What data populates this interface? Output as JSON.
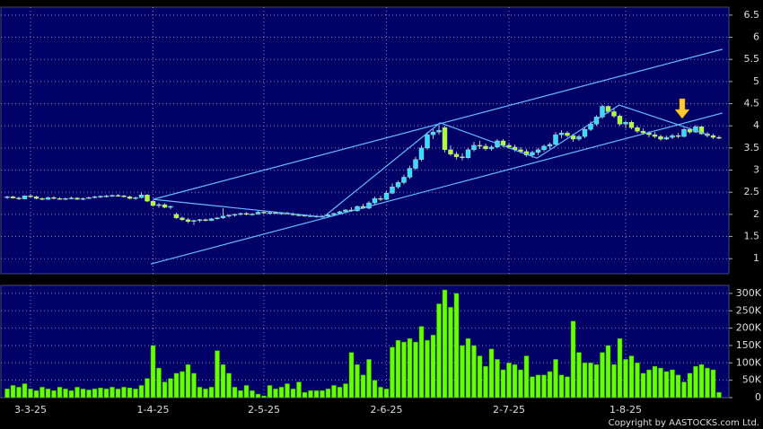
{
  "chart_data": {
    "type": "candlestick",
    "categories": [
      null,
      null,
      null,
      null,
      "3-3-25",
      null,
      null,
      null,
      null,
      null,
      null,
      null,
      null,
      null,
      null,
      null,
      null,
      null,
      null,
      null,
      null,
      null,
      null,
      null,
      null,
      "1-4-25",
      null,
      null,
      null,
      null,
      null,
      null,
      null,
      null,
      null,
      null,
      null,
      null,
      null,
      null,
      null,
      null,
      null,
      null,
      "2-5-25",
      null,
      null,
      null,
      null,
      null,
      null,
      null,
      null,
      null,
      null,
      null,
      null,
      null,
      null,
      null,
      null,
      null,
      null,
      null,
      null,
      "2-6-25",
      null,
      null,
      null,
      null,
      null,
      null,
      null,
      null,
      null,
      null,
      null,
      null,
      null,
      null,
      null,
      null,
      null,
      null,
      null,
      null,
      "2-7-25",
      null,
      null,
      null,
      null,
      null,
      null,
      null,
      null,
      null,
      null,
      null,
      null,
      null,
      null,
      null,
      null,
      null,
      null,
      null,
      "1-8-25",
      null,
      null,
      null,
      null,
      null,
      null,
      null,
      null,
      null,
      null,
      null,
      null,
      null,
      null,
      null,
      null
    ],
    "open": [
      2.38,
      2.4,
      2.37,
      2.35,
      2.42,
      2.4,
      2.36,
      2.34,
      2.38,
      2.36,
      2.35,
      2.36,
      2.37,
      2.34,
      2.36,
      2.38,
      2.4,
      2.41,
      2.42,
      2.43,
      2.42,
      2.4,
      2.36,
      2.38,
      2.44,
      2.3,
      2.2,
      2.22,
      2.16,
      2.0,
      1.92,
      1.88,
      1.84,
      1.86,
      1.88,
      1.86,
      1.9,
      1.92,
      1.96,
      1.98,
      2.0,
      2.02,
      2.0,
      2.01,
      2.05,
      2.03,
      2.04,
      2.02,
      2.03,
      2.01,
      1.99,
      1.98,
      1.97,
      1.96,
      1.95,
      1.96,
      1.99,
      2.02,
      2.06,
      2.1,
      2.08,
      2.18,
      2.14,
      2.26,
      2.36,
      2.34,
      2.48,
      2.62,
      2.72,
      2.84,
      3.04,
      3.24,
      3.5,
      3.8,
      3.86,
      3.96,
      3.46,
      3.36,
      3.3,
      3.28,
      3.46,
      3.56,
      3.54,
      3.48,
      3.52,
      3.66,
      3.56,
      3.52,
      3.46,
      3.42,
      3.34,
      3.4,
      3.46,
      3.54,
      3.58,
      3.8,
      3.84,
      3.78,
      3.7,
      3.76,
      3.92,
      4.04,
      4.2,
      4.44,
      4.32,
      4.22,
      4.04,
      4.08,
      3.96,
      3.88,
      3.84,
      3.8,
      3.76,
      3.7,
      3.74,
      3.78,
      3.76,
      3.92,
      3.86,
      3.98,
      3.82,
      3.78,
      3.74
    ],
    "high": [
      2.42,
      2.42,
      2.4,
      2.43,
      2.46,
      2.42,
      2.38,
      2.4,
      2.41,
      2.39,
      2.38,
      2.4,
      2.39,
      2.38,
      2.4,
      2.42,
      2.43,
      2.44,
      2.45,
      2.46,
      2.44,
      2.42,
      2.4,
      2.5,
      2.46,
      2.32,
      2.26,
      2.25,
      2.2,
      2.04,
      1.95,
      1.92,
      1.88,
      1.9,
      1.91,
      1.92,
      1.94,
      2.14,
      2.0,
      2.02,
      2.04,
      2.05,
      2.03,
      2.08,
      2.08,
      2.06,
      2.07,
      2.05,
      2.06,
      2.04,
      2.02,
      2.0,
      1.99,
      1.98,
      1.98,
      2.0,
      2.04,
      2.08,
      2.12,
      2.16,
      2.2,
      2.24,
      2.3,
      2.4,
      2.42,
      2.52,
      2.7,
      2.76,
      2.9,
      3.1,
      3.3,
      3.56,
      3.86,
      3.92,
      4.02,
      4.0,
      3.56,
      3.42,
      3.38,
      3.5,
      3.64,
      3.66,
      3.6,
      3.56,
      3.7,
      3.7,
      3.62,
      3.58,
      3.52,
      3.48,
      3.44,
      3.5,
      3.58,
      3.62,
      3.86,
      3.9,
      3.88,
      3.82,
      3.8,
      3.96,
      4.1,
      4.24,
      4.48,
      4.46,
      4.4,
      4.26,
      4.12,
      4.12,
      4.0,
      3.94,
      3.88,
      3.86,
      3.8,
      3.78,
      3.82,
      3.84,
      3.96,
      3.96,
      4.02,
      4.0,
      3.86,
      3.82,
      3.78
    ],
    "low": [
      2.35,
      2.36,
      2.33,
      2.34,
      2.38,
      2.34,
      2.32,
      2.33,
      2.34,
      2.33,
      2.32,
      2.34,
      2.33,
      2.32,
      2.35,
      2.36,
      2.37,
      2.38,
      2.39,
      2.4,
      2.38,
      2.34,
      2.33,
      2.36,
      2.28,
      2.18,
      2.15,
      2.14,
      2.12,
      1.9,
      1.85,
      1.8,
      1.76,
      1.82,
      1.84,
      1.85,
      1.88,
      1.9,
      1.93,
      1.95,
      1.97,
      1.98,
      1.97,
      1.99,
      2.01,
      2.0,
      2.01,
      1.99,
      2.0,
      1.97,
      1.96,
      1.95,
      1.94,
      1.93,
      1.93,
      1.94,
      1.97,
      2.0,
      2.04,
      2.06,
      2.06,
      2.12,
      2.12,
      2.22,
      2.3,
      2.32,
      2.46,
      2.58,
      2.68,
      2.8,
      3.0,
      3.2,
      3.46,
      3.7,
      3.8,
      3.4,
      3.32,
      3.24,
      3.22,
      3.26,
      3.42,
      3.48,
      3.44,
      3.44,
      3.5,
      3.52,
      3.48,
      3.42,
      3.38,
      3.3,
      3.28,
      3.34,
      3.42,
      3.48,
      3.56,
      3.72,
      3.74,
      3.64,
      3.66,
      3.72,
      3.88,
      4.0,
      4.16,
      4.28,
      4.18,
      4.0,
      3.94,
      3.92,
      3.84,
      3.8,
      3.74,
      3.72,
      3.66,
      3.68,
      3.7,
      3.72,
      3.74,
      3.82,
      3.84,
      3.8,
      3.74,
      3.7,
      3.7
    ],
    "close": [
      2.4,
      2.37,
      2.35,
      2.42,
      2.4,
      2.36,
      2.34,
      2.38,
      2.36,
      2.35,
      2.36,
      2.37,
      2.34,
      2.36,
      2.38,
      2.4,
      2.41,
      2.42,
      2.43,
      2.42,
      2.4,
      2.36,
      2.38,
      2.44,
      2.3,
      2.2,
      2.22,
      2.16,
      2.18,
      1.92,
      1.88,
      1.84,
      1.86,
      1.88,
      1.86,
      1.9,
      1.92,
      1.96,
      1.98,
      2.0,
      2.02,
      2.0,
      2.01,
      2.05,
      2.03,
      2.04,
      2.02,
      2.03,
      2.01,
      1.99,
      1.98,
      1.97,
      1.96,
      1.95,
      1.96,
      1.99,
      2.02,
      2.06,
      2.1,
      2.08,
      2.18,
      2.14,
      2.26,
      2.36,
      2.34,
      2.48,
      2.62,
      2.72,
      2.84,
      3.04,
      3.24,
      3.5,
      3.8,
      3.86,
      3.9,
      3.46,
      3.36,
      3.3,
      3.28,
      3.46,
      3.56,
      3.54,
      3.48,
      3.52,
      3.66,
      3.56,
      3.52,
      3.46,
      3.42,
      3.34,
      3.4,
      3.46,
      3.54,
      3.58,
      3.8,
      3.84,
      3.78,
      3.7,
      3.76,
      3.92,
      4.04,
      4.2,
      4.44,
      4.32,
      4.22,
      4.04,
      4.08,
      3.96,
      3.88,
      3.84,
      3.8,
      3.76,
      3.7,
      3.74,
      3.78,
      3.76,
      3.92,
      3.86,
      3.98,
      3.82,
      3.78,
      3.74,
      3.72
    ],
    "volume": [
      25000,
      35000,
      30000,
      40000,
      25000,
      20000,
      30000,
      25000,
      20000,
      30000,
      25000,
      20000,
      30000,
      25000,
      22000,
      25000,
      28000,
      25000,
      30000,
      25000,
      30000,
      28000,
      25000,
      35000,
      55000,
      150000,
      85000,
      45000,
      55000,
      70000,
      75000,
      95000,
      70000,
      30000,
      25000,
      30000,
      135000,
      95000,
      70000,
      30000,
      20000,
      35000,
      20000,
      10000,
      5000,
      35000,
      25000,
      30000,
      40000,
      25000,
      45000,
      15000,
      20000,
      20000,
      20000,
      25000,
      35000,
      30000,
      40000,
      130000,
      95000,
      65000,
      110000,
      50000,
      30000,
      25000,
      145000,
      165000,
      160000,
      170000,
      160000,
      205000,
      165000,
      180000,
      270000,
      310000,
      260000,
      300000,
      150000,
      170000,
      150000,
      120000,
      90000,
      140000,
      110000,
      80000,
      100000,
      95000,
      80000,
      120000,
      60000,
      65000,
      65000,
      75000,
      110000,
      65000,
      60000,
      220000,
      130000,
      100000,
      100000,
      95000,
      130000,
      150000,
      95000,
      170000,
      110000,
      120000,
      100000,
      70000,
      80000,
      90000,
      85000,
      75000,
      80000,
      65000,
      45000,
      70000,
      90000,
      95000,
      85000,
      80000,
      15000
    ],
    "ylim": [
      0.66,
      6.68
    ],
    "yticks": [
      1,
      1.5,
      2,
      2.5,
      3,
      3.5,
      4,
      4.5,
      5,
      5.5,
      6,
      6.5
    ],
    "volume_ylim": [
      0,
      323000
    ],
    "volume_yticks": [
      0,
      {
        "value": 50000,
        "label": "50K"
      },
      {
        "value": 100000,
        "label": "100K"
      },
      {
        "value": 150000,
        "label": "150K"
      },
      {
        "value": 200000,
        "label": "200K"
      },
      {
        "value": 250000,
        "label": "250K"
      },
      {
        "value": 300000,
        "label": "300K"
      }
    ],
    "trendlines": [
      {
        "x": [
          25,
          122.6
        ],
        "y": [
          2.34,
          5.73
        ]
      },
      {
        "x": [
          24.6,
          122.6
        ],
        "y": [
          0.88,
          4.29
        ]
      },
      {
        "x": [
          25,
          54.2
        ],
        "y": [
          2.34,
          1.94
        ]
      },
      {
        "x": [
          54.2,
          74.2
        ],
        "y": [
          1.94,
          4.07
        ]
      },
      {
        "x": [
          74.2,
          90.8
        ],
        "y": [
          4.07,
          3.27
        ]
      },
      {
        "x": [
          90.8,
          104.9
        ],
        "y": [
          3.27,
          4.47
        ]
      },
      {
        "x": [
          104.9,
          120.3
        ],
        "y": [
          4.47,
          3.79
        ]
      }
    ],
    "up_color": "#33ddff",
    "down_color": "#aaff33",
    "volume_color": "#66ff00",
    "trendline_color": "#66bbff",
    "grid": true,
    "credit": "Copyright by AASTOCKS.com Ltd."
  }
}
